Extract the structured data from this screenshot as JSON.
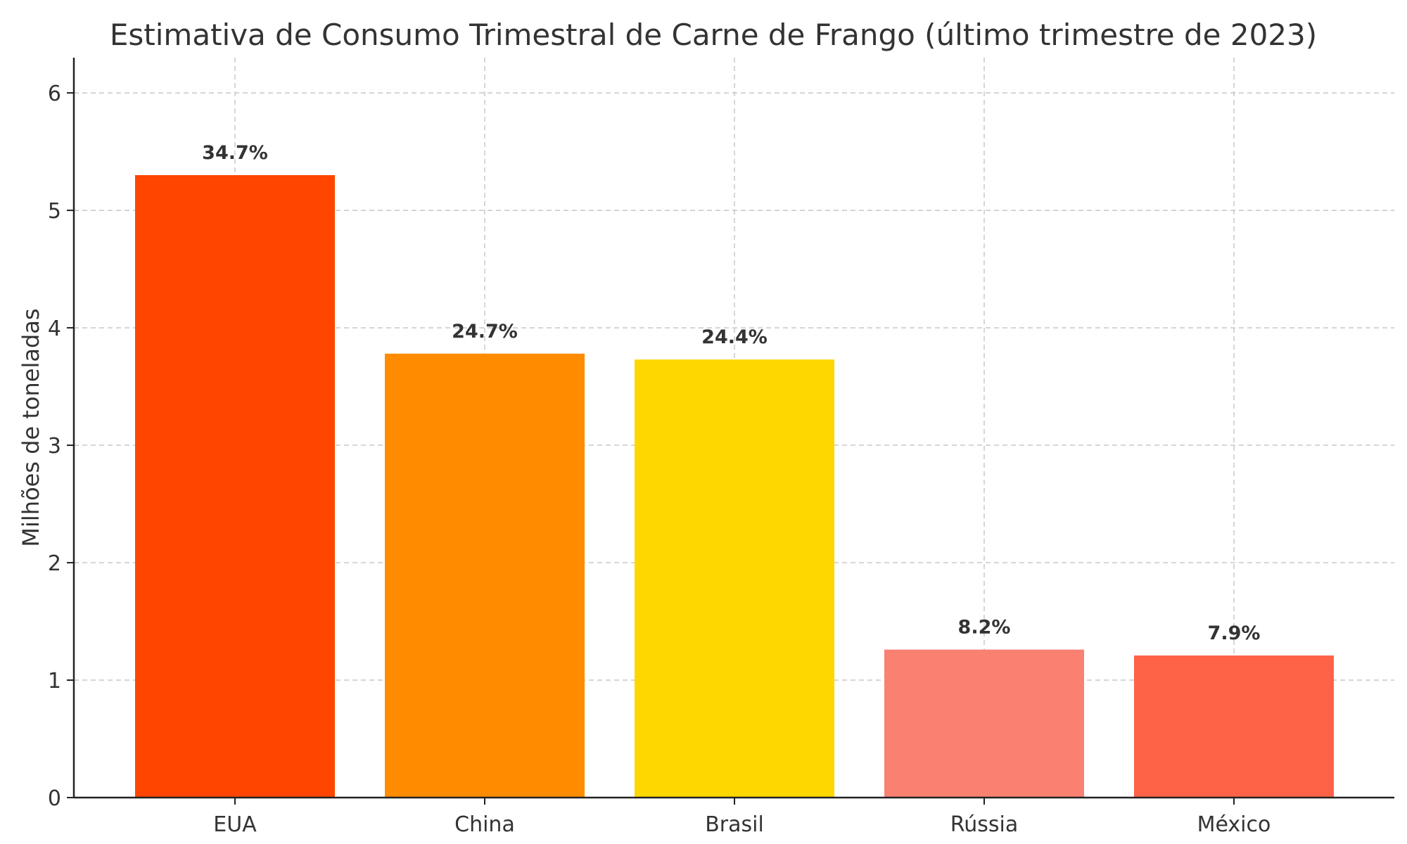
{
  "chart_data": {
    "type": "bar",
    "title": "Estimativa de Consumo Trimestral de Carne de Frango (último trimestre de 2023)",
    "xlabel": "",
    "ylabel": "Milhões de toneladas",
    "categories": [
      "EUA",
      "China",
      "Brasil",
      "Rússia",
      "México"
    ],
    "values": [
      5.3,
      3.78,
      3.73,
      1.26,
      1.21
    ],
    "data_labels": [
      "34.7%",
      "24.7%",
      "24.4%",
      "8.2%",
      "7.9%"
    ],
    "colors": [
      "#FF4500",
      "#FF8C00",
      "#FFD700",
      "#FA8072",
      "#FF6347"
    ],
    "ylim": [
      0,
      6.3
    ],
    "yticks": [
      0,
      1,
      2,
      3,
      4,
      5,
      6
    ],
    "grid": true,
    "legend": "none"
  }
}
